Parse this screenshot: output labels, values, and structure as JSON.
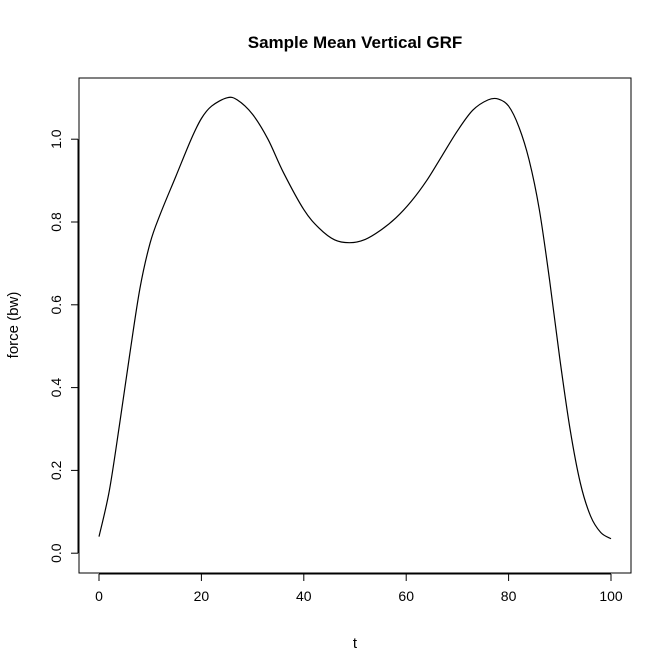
{
  "chart_data": {
    "type": "line",
    "title": "Sample Mean Vertical GRF",
    "xlabel": "t",
    "ylabel": "force (bw)",
    "xlim": [
      0,
      100
    ],
    "ylim": [
      0.0,
      1.1
    ],
    "x_ticks": [
      0,
      20,
      40,
      60,
      80,
      100
    ],
    "x_tick_labels": [
      "0",
      "20",
      "40",
      "60",
      "80",
      "100"
    ],
    "y_ticks": [
      0.0,
      0.2,
      0.4,
      0.6,
      0.8,
      1.0
    ],
    "y_tick_labels": [
      "0.0",
      "0.2",
      "0.4",
      "0.6",
      "0.8",
      "1.0"
    ],
    "grid": false,
    "legend": "none",
    "series": [
      {
        "x": [
          0,
          2,
          4,
          6,
          8,
          10,
          12,
          15,
          18,
          20,
          22,
          25,
          27,
          30,
          33,
          36,
          40,
          43,
          46,
          49,
          52,
          55,
          58,
          61,
          64,
          67,
          70,
          73,
          76,
          78,
          80,
          82,
          84,
          86,
          88,
          90,
          92,
          94,
          96,
          98,
          100
        ],
        "values": [
          0.04,
          0.15,
          0.31,
          0.48,
          0.64,
          0.75,
          0.82,
          0.91,
          1.0,
          1.05,
          1.08,
          1.1,
          1.095,
          1.06,
          1.0,
          0.92,
          0.83,
          0.785,
          0.757,
          0.75,
          0.758,
          0.78,
          0.81,
          0.85,
          0.9,
          0.96,
          1.02,
          1.07,
          1.095,
          1.097,
          1.08,
          1.03,
          0.95,
          0.83,
          0.66,
          0.47,
          0.3,
          0.17,
          0.09,
          0.05,
          0.035
        ]
      }
    ]
  }
}
